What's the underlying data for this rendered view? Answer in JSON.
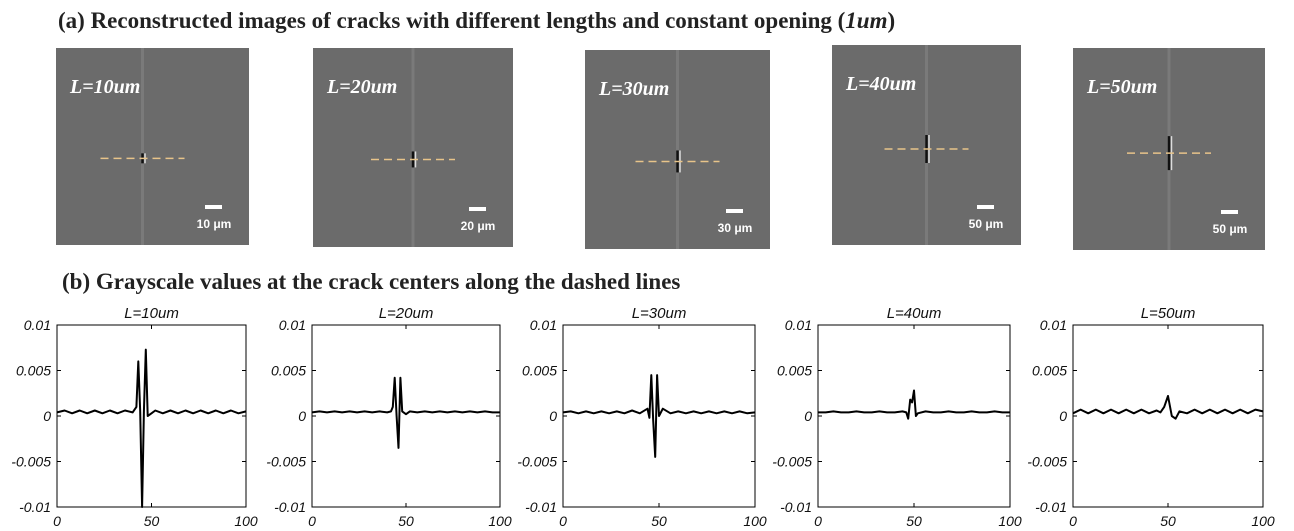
{
  "panel_a": {
    "title_prefix": "(a) Reconstructed images of cracks with different lengths and constant opening (",
    "title_italic": "1um",
    "title_suffix": ")",
    "images": [
      {
        "label": "L=10um",
        "scale_bar": "10 μm"
      },
      {
        "label": "L=20um",
        "scale_bar": "20 μm"
      },
      {
        "label": "L=30um",
        "scale_bar": "30 μm"
      },
      {
        "label": "L=40um",
        "scale_bar": "50 μm"
      },
      {
        "label": "L=50um",
        "scale_bar": "50 μm"
      }
    ]
  },
  "panel_b": {
    "title": "(b)  Grayscale values at the crack centers along the dashed lines"
  },
  "chart_data": [
    {
      "type": "line",
      "title": "L=10um",
      "color": "#000000",
      "x": [
        0,
        4,
        8,
        12,
        16,
        20,
        24,
        28,
        32,
        36,
        40,
        42,
        43,
        44,
        45,
        46,
        47,
        48,
        50,
        52,
        56,
        60,
        64,
        68,
        72,
        76,
        80,
        84,
        88,
        92,
        96,
        100
      ],
      "values": [
        0.0004,
        0.0006,
        0.0003,
        0.0006,
        0.0003,
        0.0006,
        0.0003,
        0.0006,
        0.0003,
        0.0006,
        0.0004,
        0.001,
        0.006,
        0.0005,
        -0.01,
        0.0005,
        0.0073,
        0.0,
        0.0003,
        0.0006,
        0.0003,
        0.0006,
        0.0003,
        0.0006,
        0.0003,
        0.0006,
        0.0003,
        0.0006,
        0.0003,
        0.0006,
        0.0003,
        0.0005
      ],
      "xlim": [
        0,
        100
      ],
      "xticks": [
        0,
        50,
        100
      ],
      "ylim": [
        -0.01,
        0.01
      ],
      "yticks": [
        -0.01,
        -0.005,
        0,
        0.005,
        0.01
      ]
    },
    {
      "type": "line",
      "title": "L=20um",
      "color": "#000000",
      "x": [
        0,
        4,
        8,
        12,
        16,
        20,
        24,
        28,
        32,
        36,
        40,
        42,
        43,
        44,
        45,
        46,
        47,
        48,
        50,
        52,
        56,
        60,
        64,
        68,
        72,
        76,
        80,
        84,
        88,
        92,
        96,
        100
      ],
      "values": [
        0.0004,
        0.0005,
        0.0004,
        0.0005,
        0.0004,
        0.0005,
        0.0004,
        0.0005,
        0.0004,
        0.0005,
        0.0004,
        0.0005,
        0.001,
        0.0042,
        0.0,
        -0.0035,
        0.0042,
        0.0005,
        0.0002,
        0.0005,
        0.0004,
        0.0005,
        0.0004,
        0.0005,
        0.0004,
        0.0005,
        0.0004,
        0.0005,
        0.0004,
        0.0005,
        0.0004,
        0.0004
      ],
      "xlim": [
        0,
        100
      ],
      "xticks": [
        0,
        50,
        100
      ],
      "ylim": [
        -0.01,
        0.01
      ],
      "yticks": [
        -0.01,
        -0.005,
        0,
        0.005,
        0.01
      ]
    },
    {
      "type": "line",
      "title": "L=30um",
      "color": "#000000",
      "x": [
        0,
        4,
        8,
        12,
        16,
        20,
        24,
        28,
        32,
        36,
        40,
        44,
        45,
        46,
        47,
        48,
        49,
        50,
        52,
        56,
        60,
        64,
        68,
        72,
        76,
        80,
        84,
        88,
        92,
        96,
        100
      ],
      "values": [
        0.0004,
        0.0005,
        0.0003,
        0.0005,
        0.0003,
        0.0005,
        0.0003,
        0.0005,
        0.0003,
        0.0006,
        0.0003,
        0.0008,
        -0.0002,
        0.0045,
        -0.0005,
        -0.0045,
        0.0045,
        0.0,
        0.0008,
        0.0003,
        0.0005,
        0.0003,
        0.0005,
        0.0003,
        0.0005,
        0.0003,
        0.0005,
        0.0003,
        0.0005,
        0.0003,
        0.0004
      ],
      "xlim": [
        0,
        100
      ],
      "xticks": [
        0,
        50,
        100
      ],
      "ylim": [
        -0.01,
        0.01
      ],
      "yticks": [
        -0.01,
        -0.005,
        0,
        0.005,
        0.01
      ]
    },
    {
      "type": "line",
      "title": "L=40um",
      "color": "#000000",
      "x": [
        0,
        4,
        8,
        12,
        16,
        20,
        24,
        28,
        32,
        36,
        40,
        44,
        46,
        47,
        48,
        49,
        50,
        51,
        52,
        56,
        60,
        64,
        68,
        72,
        76,
        80,
        84,
        88,
        92,
        96,
        100
      ],
      "values": [
        0.0004,
        0.0004,
        0.0005,
        0.0004,
        0.0004,
        0.0005,
        0.0004,
        0.0004,
        0.0005,
        0.0004,
        0.0004,
        0.0005,
        0.0004,
        -0.0003,
        0.0018,
        0.0015,
        0.0028,
        0.0,
        0.0003,
        0.0005,
        0.0004,
        0.0004,
        0.0005,
        0.0004,
        0.0004,
        0.0005,
        0.0004,
        0.0004,
        0.0005,
        0.0004,
        0.0004
      ],
      "xlim": [
        0,
        100
      ],
      "xticks": [
        0,
        50,
        100
      ],
      "ylim": [
        -0.01,
        0.01
      ],
      "yticks": [
        -0.01,
        -0.005,
        0,
        0.005,
        0.01
      ]
    },
    {
      "type": "line",
      "title": "L=50um",
      "color": "#000000",
      "x": [
        0,
        4,
        8,
        12,
        16,
        20,
        24,
        28,
        32,
        36,
        40,
        44,
        46,
        48,
        50,
        52,
        54,
        56,
        60,
        64,
        68,
        72,
        76,
        80,
        84,
        88,
        92,
        96,
        100
      ],
      "values": [
        0.0003,
        0.0007,
        0.0003,
        0.0007,
        0.0003,
        0.0007,
        0.0003,
        0.0007,
        0.0003,
        0.0007,
        0.0003,
        0.0006,
        0.0004,
        0.001,
        0.0022,
        0.0,
        -0.0003,
        0.0005,
        0.0003,
        0.0007,
        0.0003,
        0.0007,
        0.0003,
        0.0007,
        0.0003,
        0.0007,
        0.0003,
        0.0007,
        0.0005
      ],
      "xlim": [
        0,
        100
      ],
      "xticks": [
        0,
        50,
        100
      ],
      "ylim": [
        -0.01,
        0.01
      ],
      "yticks": [
        -0.01,
        -0.005,
        0,
        0.005,
        0.01
      ]
    }
  ]
}
